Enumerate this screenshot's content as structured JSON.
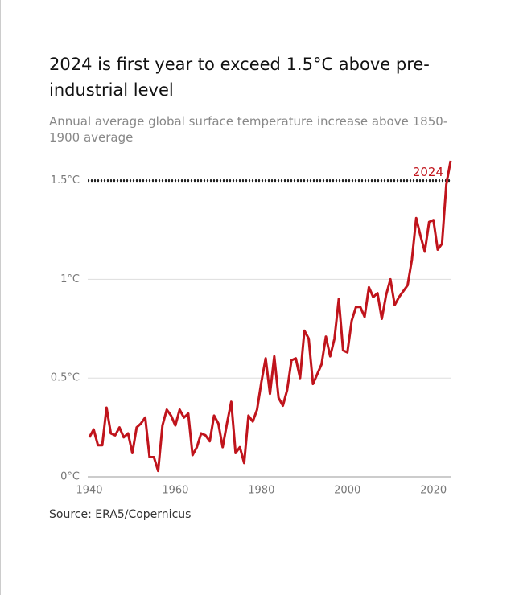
{
  "chart_data": {
    "type": "line",
    "title": "2024 is first year to exceed 1.5°C above pre-industrial level",
    "subtitle": "Annual average global surface temperature increase above 1850-1900 average",
    "source": "Source: ERA5/Copernicus",
    "annotation": "2024",
    "reference_line": 1.5,
    "color": "#c0141c",
    "x": [
      1940,
      1941,
      1942,
      1943,
      1944,
      1945,
      1946,
      1947,
      1948,
      1949,
      1950,
      1951,
      1952,
      1953,
      1954,
      1955,
      1956,
      1957,
      1958,
      1959,
      1960,
      1961,
      1962,
      1963,
      1964,
      1965,
      1966,
      1967,
      1968,
      1969,
      1970,
      1971,
      1972,
      1973,
      1974,
      1975,
      1976,
      1977,
      1978,
      1979,
      1980,
      1981,
      1982,
      1983,
      1984,
      1985,
      1986,
      1987,
      1988,
      1989,
      1990,
      1991,
      1992,
      1993,
      1994,
      1995,
      1996,
      1997,
      1998,
      1999,
      2000,
      2001,
      2002,
      2003,
      2004,
      2005,
      2006,
      2007,
      2008,
      2009,
      2010,
      2011,
      2012,
      2013,
      2014,
      2015,
      2016,
      2017,
      2018,
      2019,
      2020,
      2021,
      2022,
      2023,
      2024
    ],
    "values": [
      0.2,
      0.24,
      0.16,
      0.16,
      0.35,
      0.22,
      0.21,
      0.25,
      0.2,
      0.22,
      0.12,
      0.25,
      0.27,
      0.3,
      0.1,
      0.1,
      0.03,
      0.26,
      0.34,
      0.31,
      0.26,
      0.34,
      0.3,
      0.32,
      0.11,
      0.15,
      0.22,
      0.21,
      0.18,
      0.31,
      0.27,
      0.15,
      0.27,
      0.38,
      0.12,
      0.15,
      0.07,
      0.31,
      0.28,
      0.34,
      0.48,
      0.6,
      0.42,
      0.61,
      0.4,
      0.36,
      0.44,
      0.59,
      0.6,
      0.5,
      0.74,
      0.7,
      0.47,
      0.52,
      0.57,
      0.71,
      0.61,
      0.7,
      0.9,
      0.64,
      0.63,
      0.79,
      0.86,
      0.86,
      0.81,
      0.96,
      0.91,
      0.93,
      0.8,
      0.92,
      1.0,
      0.87,
      0.91,
      0.94,
      0.97,
      1.1,
      1.31,
      1.22,
      1.14,
      1.29,
      1.3,
      1.15,
      1.18,
      1.48,
      1.6
    ],
    "xlim": [
      1940,
      2024
    ],
    "xticks": [
      1940,
      1960,
      1980,
      2000,
      2020
    ],
    "ylim": [
      0,
      1.6
    ],
    "yticks": [
      {
        "value": 0,
        "label": "0°C"
      },
      {
        "value": 0.5,
        "label": "0.5°C"
      },
      {
        "value": 1,
        "label": "1°C"
      },
      {
        "value": 1.5,
        "label": "1.5°C"
      }
    ],
    "grid": true
  }
}
